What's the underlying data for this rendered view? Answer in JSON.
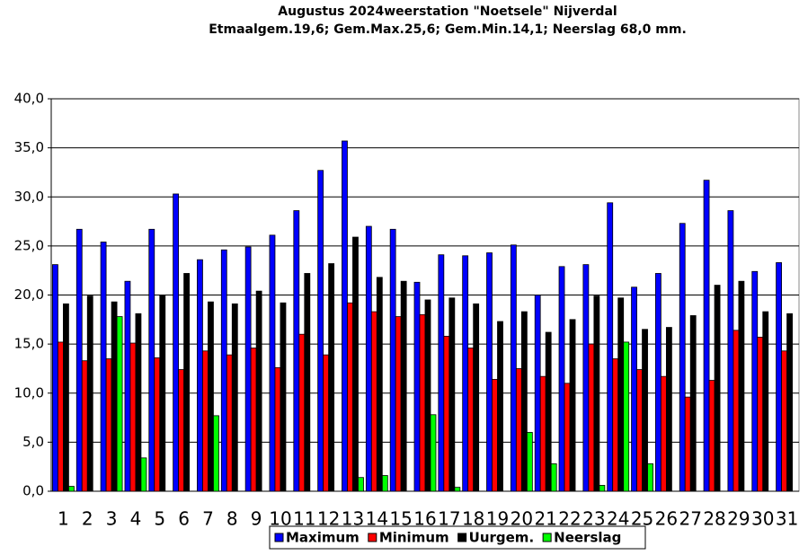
{
  "chart_data": {
    "type": "bar",
    "title": "Augustus 2024weerstation \"Noetsele\" Nijverdal",
    "subtitle": "Etmaalgem.19,6; Gem.Max.25,6;  Gem.Min.14,1; Neerslag 68,0 mm.",
    "categories": [
      "1",
      "2",
      "3",
      "4",
      "5",
      "6",
      "7",
      "8",
      "9",
      "10",
      "11",
      "12",
      "13",
      "14",
      "15",
      "16",
      "17",
      "18",
      "19",
      "20",
      "21",
      "22",
      "23",
      "24",
      "25",
      "26",
      "27",
      "28",
      "29",
      "30",
      "31"
    ],
    "series": [
      {
        "name": "Maximum",
        "color": "#0000ff",
        "values": [
          23.1,
          26.7,
          25.4,
          21.4,
          26.7,
          30.3,
          23.6,
          24.6,
          24.9,
          26.1,
          28.6,
          32.7,
          35.7,
          27.0,
          26.7,
          21.3,
          24.1,
          24.0,
          24.3,
          25.1,
          20.0,
          22.9,
          23.1,
          29.4,
          20.8,
          22.2,
          27.3,
          31.7,
          28.6,
          22.4,
          23.3
        ]
      },
      {
        "name": "Minimum",
        "color": "#ff0000",
        "values": [
          15.2,
          13.3,
          13.5,
          15.1,
          13.6,
          12.4,
          14.3,
          13.9,
          14.6,
          12.6,
          16.0,
          13.9,
          19.2,
          18.3,
          17.8,
          18.0,
          15.8,
          14.6,
          11.4,
          12.5,
          11.7,
          11.0,
          15.0,
          13.5,
          12.4,
          11.7,
          9.6,
          11.3,
          16.4,
          15.7,
          14.3
        ]
      },
      {
        "name": "Uurgem.",
        "color": "#000000",
        "values": [
          19.1,
          19.9,
          19.3,
          18.1,
          20.0,
          22.2,
          19.3,
          19.1,
          20.4,
          19.2,
          22.2,
          23.2,
          25.9,
          21.8,
          21.4,
          19.5,
          19.7,
          19.1,
          17.3,
          18.3,
          16.2,
          17.5,
          19.9,
          19.7,
          16.5,
          16.7,
          17.9,
          21.0,
          21.4,
          18.3,
          18.1
        ]
      },
      {
        "name": "Neerslag",
        "color": "#00ff00",
        "values": [
          0.5,
          0,
          17.8,
          3.4,
          0,
          0,
          7.7,
          0,
          0,
          0,
          0,
          0,
          1.4,
          1.6,
          0,
          7.8,
          0.4,
          0,
          0,
          6.0,
          2.8,
          0,
          0.6,
          15.2,
          2.8,
          0,
          0,
          0,
          0,
          0,
          0
        ]
      }
    ],
    "ylim": [
      0,
      40
    ],
    "yticks": [
      {
        "value": 0,
        "label": "0,0"
      },
      {
        "value": 5,
        "label": "5,0"
      },
      {
        "value": 10,
        "label": "10,0"
      },
      {
        "value": 15,
        "label": "15,0"
      },
      {
        "value": 20,
        "label": "20,0"
      },
      {
        "value": 25,
        "label": "25,0"
      },
      {
        "value": 30,
        "label": "30,0"
      },
      {
        "value": 35,
        "label": "35,0"
      },
      {
        "value": 40,
        "label": "40,0"
      }
    ],
    "grid": true,
    "legend": "bottom"
  }
}
